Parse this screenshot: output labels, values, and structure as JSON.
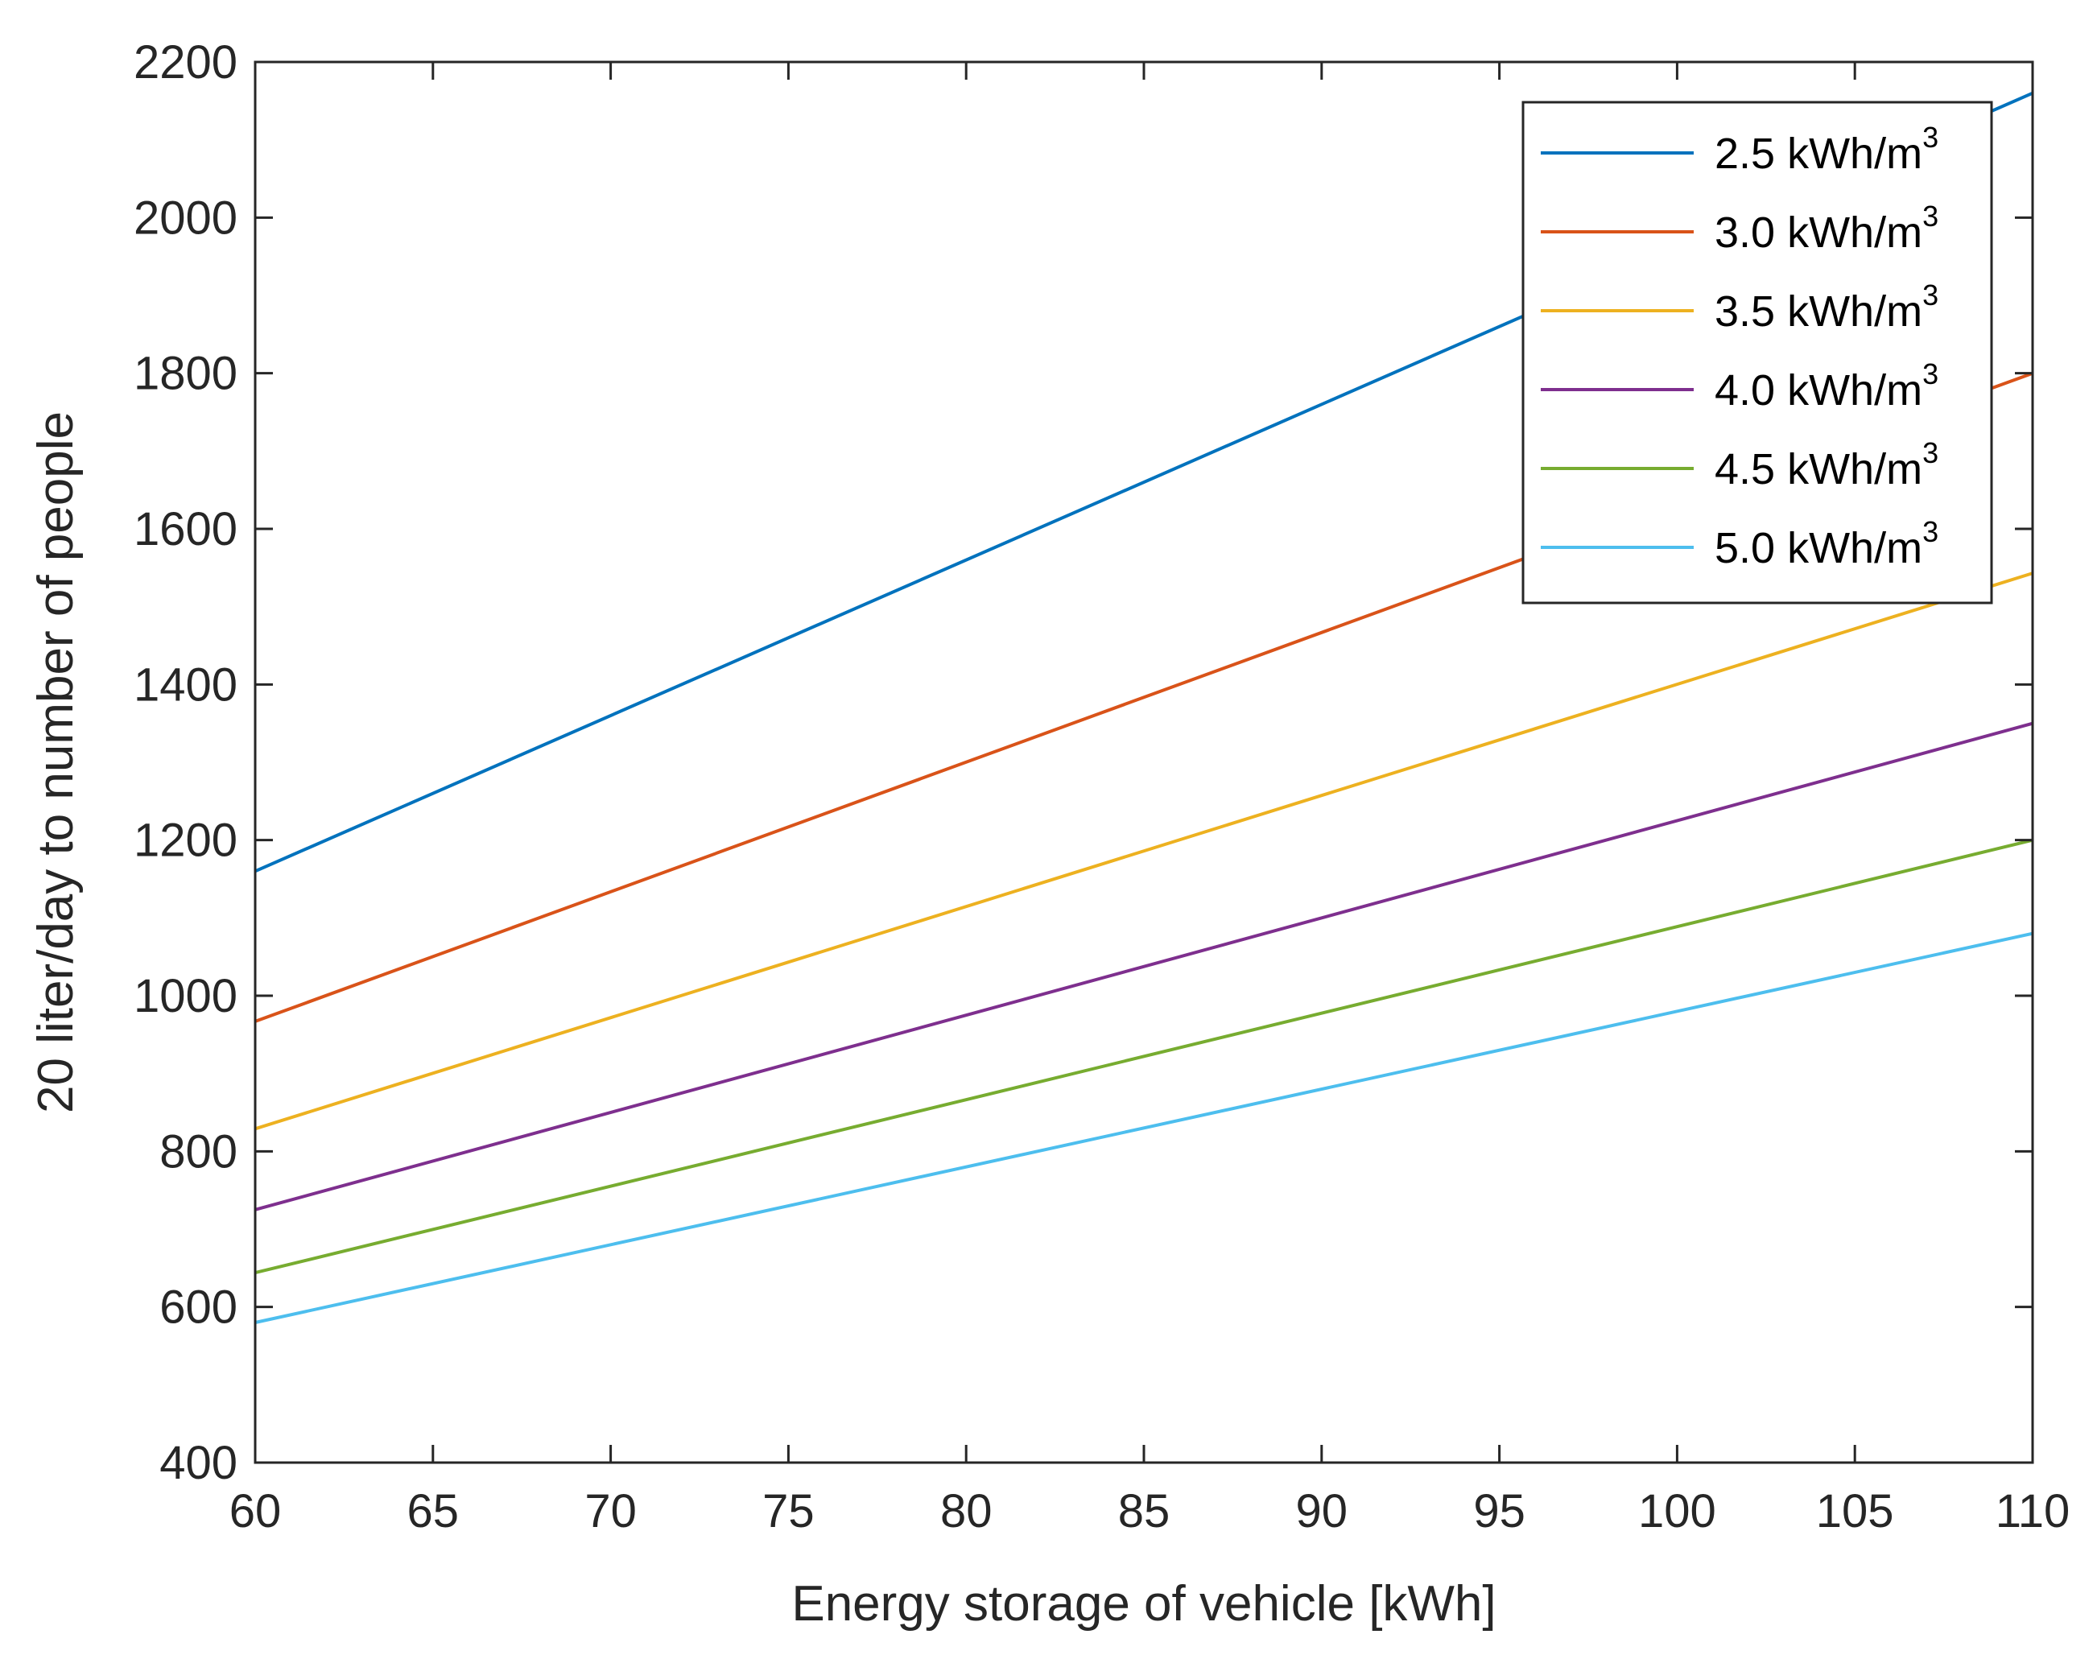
{
  "chart_data": {
    "type": "line",
    "title": "",
    "xlabel": "Energy storage of vehicle [kWh]",
    "ylabel": "20 liter/day to number of people",
    "xlim": [
      60,
      110
    ],
    "ylim": [
      400,
      2200
    ],
    "xticks": [
      60,
      65,
      70,
      75,
      80,
      85,
      90,
      95,
      100,
      105,
      110
    ],
    "yticks": [
      400,
      600,
      800,
      1000,
      1200,
      1400,
      1600,
      1800,
      2000,
      2200
    ],
    "grid": false,
    "legend_position": "top-right",
    "x": [
      60,
      110
    ],
    "series": [
      {
        "name": "2.5 kWh/m",
        "superscript": "3",
        "color": "#0072BD",
        "values": [
          1160,
          2160
        ]
      },
      {
        "name": "3.0 kWh/m",
        "superscript": "3",
        "color": "#D95319",
        "values": [
          967,
          1800
        ]
      },
      {
        "name": "3.5 kWh/m",
        "superscript": "3",
        "color": "#EDB120",
        "values": [
          829,
          1543
        ]
      },
      {
        "name": "4.0 kWh/m",
        "superscript": "3",
        "color": "#7E2F8E",
        "values": [
          725,
          1350
        ]
      },
      {
        "name": "4.5 kWh/m",
        "superscript": "3",
        "color": "#77AC30",
        "values": [
          644,
          1200
        ]
      },
      {
        "name": "5.0 kWh/m",
        "superscript": "3",
        "color": "#4DBEEE",
        "values": [
          580,
          1080
        ]
      }
    ]
  }
}
